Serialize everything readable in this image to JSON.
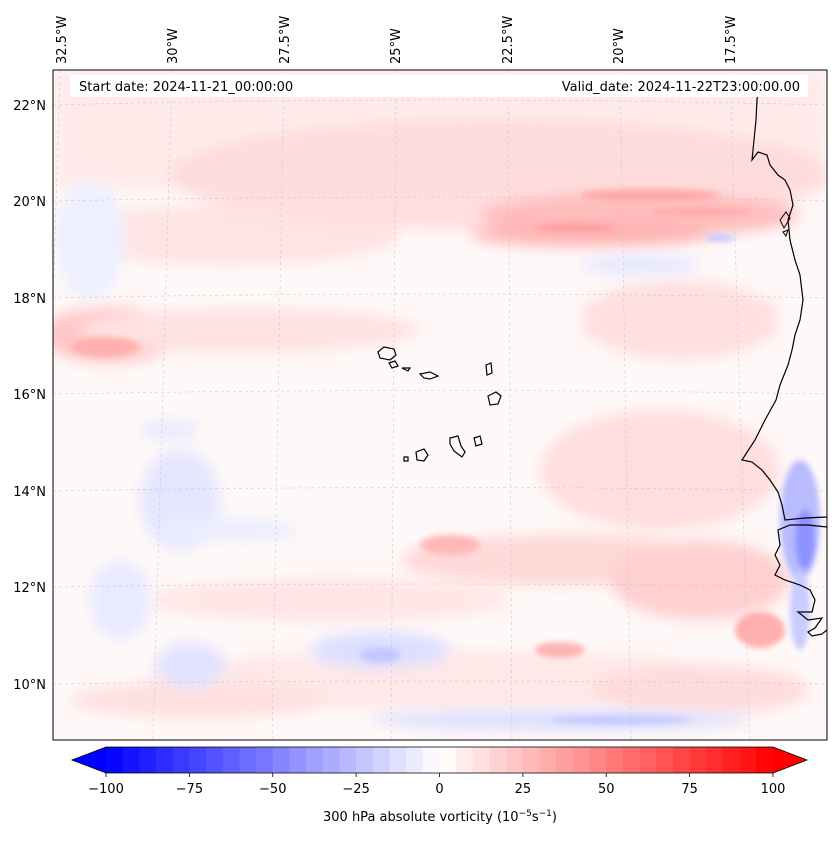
{
  "header": {
    "start_date": "Start date: 2024-11-21_00:00:00",
    "valid_date": "Valid_date: 2024-11-22T23:00:00.00"
  },
  "map": {
    "lon_labels": [
      "32.5°W",
      "30°W",
      "27.5°W",
      "25°W",
      "22.5°W",
      "20°W",
      "17.5°W"
    ],
    "lat_labels": [
      "22°N",
      "20°N",
      "18°N",
      "16°N",
      "14°N",
      "12°N",
      "10°N"
    ],
    "field": "300 hPa absolute vorticity",
    "features": [
      {
        "name": "Cabo Verde islands"
      },
      {
        "name": "West African coastline"
      }
    ],
    "gridlines": true
  },
  "colorbar": {
    "label_text": "300 hPa absolute vorticity (10",
    "label_exp1": "−5",
    "label_mid": "s",
    "label_exp2": "−1",
    "label_close": ")",
    "ticks": [
      "−100",
      "−75",
      "−50",
      "−25",
      "0",
      "25",
      "50",
      "75",
      "100"
    ],
    "vmin": -100,
    "vmax": 100,
    "colormap": "bwr",
    "colors": {
      "low": "#0000ff",
      "mid": "#ffffff",
      "high": "#ff0000"
    }
  }
}
